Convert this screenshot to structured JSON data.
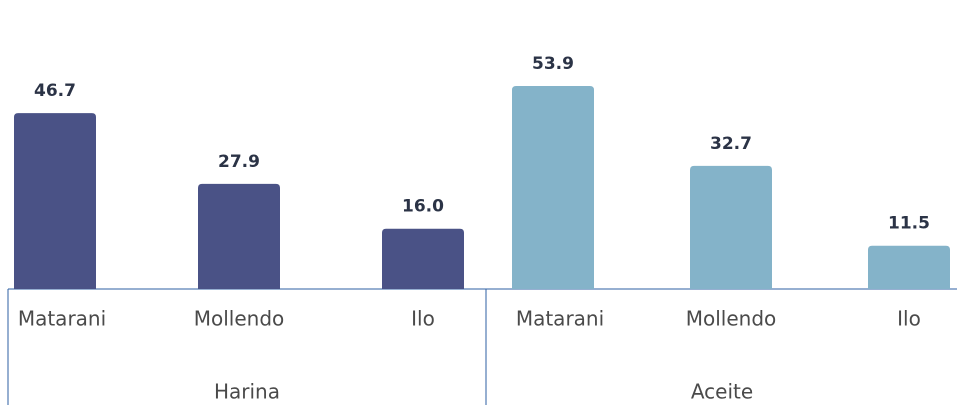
{
  "chart_data": {
    "type": "bar",
    "categories": [
      "Matarani",
      "Mollendo",
      "Ilo"
    ],
    "series": [
      {
        "name": "Harina",
        "color": "#4a5286",
        "values": [
          46.7,
          27.9,
          16.0
        ],
        "value_labels": [
          "46.7",
          "27.9",
          "16.0"
        ]
      },
      {
        "name": "Aceite",
        "color": "#84b3c9",
        "values": [
          53.9,
          32.7,
          11.5
        ],
        "value_labels": [
          "53.9",
          "32.7",
          "11.5"
        ]
      }
    ]
  }
}
